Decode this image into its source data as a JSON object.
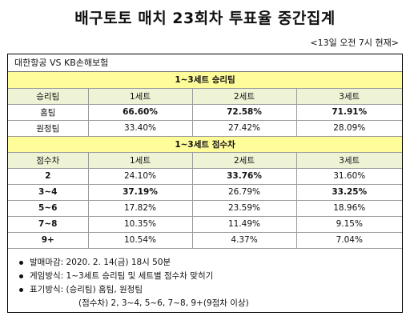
{
  "title": "배구토토 매치 23회차 투표율 중간집계",
  "timestamp": "<13일 오전 7시 현재>",
  "match": "대한항공 VS KB손해보험",
  "winner_section": {
    "title": "1~3세트 승리팀",
    "header": [
      "승리팀",
      "1세트",
      "2세트",
      "3세트"
    ],
    "rows": [
      {
        "label": "홈팀",
        "values": [
          "66.60%",
          "72.58%",
          "71.91%"
        ]
      },
      {
        "label": "원정팀",
        "values": [
          "33.40%",
          "27.42%",
          "28.09%"
        ]
      }
    ]
  },
  "margin_section": {
    "title": "1~3세트 점수차",
    "header": [
      "점수차",
      "1세트",
      "2세트",
      "3세트"
    ],
    "rows": [
      {
        "label": "2",
        "values": [
          "24.10%",
          "33.76%",
          "31.60%"
        ]
      },
      {
        "label": "3~4",
        "values": [
          "37.19%",
          "26.79%",
          "33.25%"
        ]
      },
      {
        "label": "5~6",
        "values": [
          "17.82%",
          "23.59%",
          "18.96%"
        ]
      },
      {
        "label": "7~8",
        "values": [
          "10.35%",
          "11.49%",
          "9.15%"
        ]
      },
      {
        "label": "9+",
        "values": [
          "10.54%",
          "4.37%",
          "7.04%"
        ]
      }
    ]
  },
  "notes": [
    "발매마감: 2020. 2. 14(금) 18시 50분",
    "게임방식: 1~3세트 승리팀 및 세트별 점수차 맞히기",
    "표기방식: (승리팀) 홈팀, 원정팀"
  ],
  "note_sub": "(점수차) 2, 3~4, 5~6, 7~8, 9+(9점차 이상)"
}
